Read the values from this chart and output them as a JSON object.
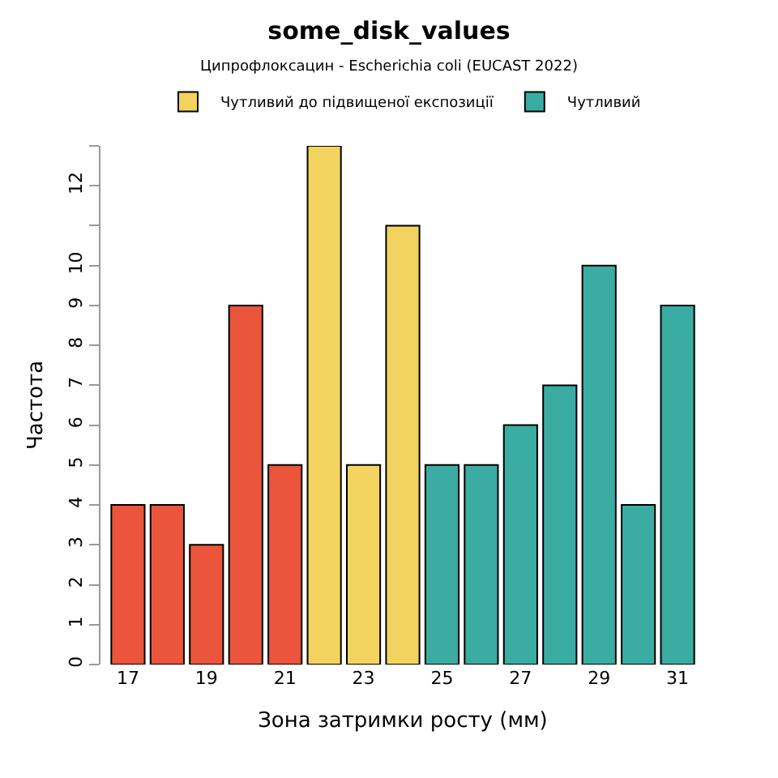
{
  "chart_data": {
    "type": "bar",
    "title": "some_disk_values",
    "subtitle": "Ципрофлоксацин - Escherichia coli (EUCAST 2022)",
    "xlabel": "Зона затримки росту (мм)",
    "ylabel": "Частота",
    "categories": [
      "17",
      null,
      "19",
      null,
      "21",
      null,
      "23",
      null,
      "25",
      null,
      "27",
      null,
      "29",
      null,
      "31"
    ],
    "series": [
      {
        "color": "#ea553b",
        "values": [
          4,
          4,
          3,
          9,
          5,
          null,
          null,
          null,
          null,
          null,
          null,
          null,
          null,
          null,
          null
        ]
      },
      {
        "name": "Чутливий до підвищеної експозиції",
        "color": "#f3d35f",
        "values": [
          null,
          null,
          null,
          null,
          null,
          13,
          5,
          11,
          null,
          null,
          null,
          null,
          null,
          null,
          null
        ]
      },
      {
        "name": "Чутливий",
        "color": "#3aaca2",
        "values": [
          null,
          null,
          null,
          null,
          null,
          null,
          null,
          null,
          5,
          5,
          6,
          7,
          10,
          4,
          9
        ]
      }
    ],
    "ylim": [
      0,
      13
    ],
    "yticks": [
      0,
      1,
      2,
      3,
      4,
      5,
      6,
      7,
      8,
      9,
      10,
      {
        "value": 11,
        "label": null
      },
      12,
      {
        "value": 13,
        "label": null
      }
    ],
    "grid": false,
    "legend": "top"
  }
}
